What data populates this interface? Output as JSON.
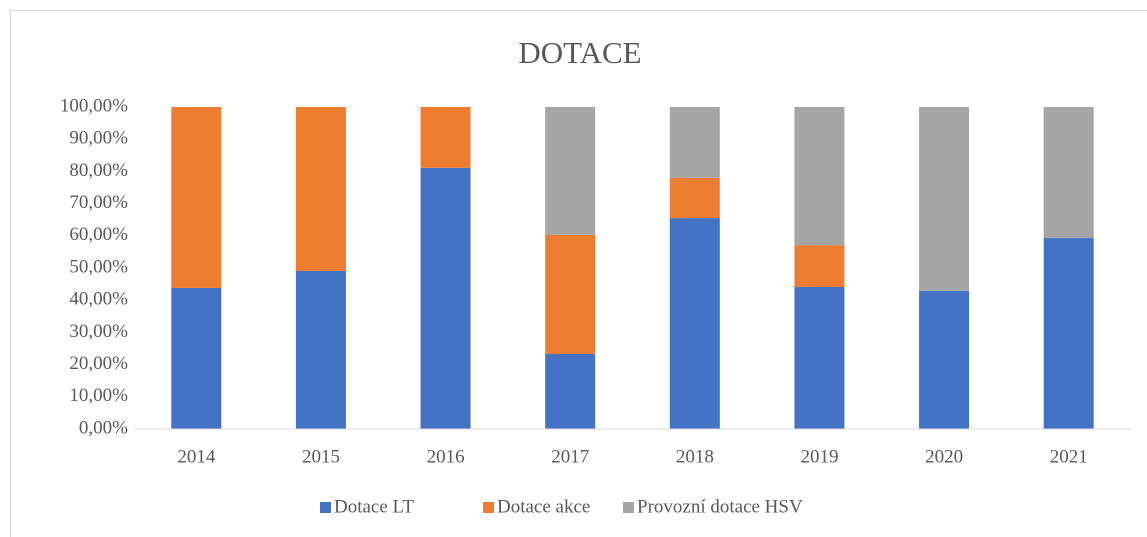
{
  "chart_data": {
    "type": "stacked_bar",
    "title": "DOTACE",
    "categories": [
      "2014",
      "2015",
      "2016",
      "2017",
      "2018",
      "2019",
      "2020",
      "2021"
    ],
    "series": [
      {
        "name": "Dotace LT",
        "color": "#4472c4",
        "values": [
          43.8,
          49.1,
          81.1,
          23.3,
          65.5,
          44.1,
          42.9,
          59.3
        ]
      },
      {
        "name": "Dotace akce",
        "color": "#ed7d31",
        "values": [
          56.2,
          50.9,
          18.9,
          37.0,
          12.5,
          13.0,
          0,
          0
        ]
      },
      {
        "name": "Provozní dotace HSV",
        "color": "#a5a5a5",
        "values": [
          0,
          0,
          0,
          39.7,
          22.0,
          42.9,
          57.1,
          40.7
        ]
      }
    ],
    "ylim": [
      0,
      100
    ],
    "yticks": [
      {
        "value": 0,
        "label": "0,00%"
      },
      {
        "value": 10,
        "label": "10,00%"
      },
      {
        "value": 20,
        "label": "20,00%"
      },
      {
        "value": 30,
        "label": "30,00%"
      },
      {
        "value": 40,
        "label": "40,00%"
      },
      {
        "value": 50,
        "label": "50,00%"
      },
      {
        "value": 60,
        "label": "60,00%"
      },
      {
        "value": 70,
        "label": "70,00%"
      },
      {
        "value": 80,
        "label": "80,00%"
      },
      {
        "value": 90,
        "label": "90,00%"
      },
      {
        "value": 100,
        "label": "100,00%"
      }
    ],
    "grid": false,
    "legend": "bottom"
  }
}
